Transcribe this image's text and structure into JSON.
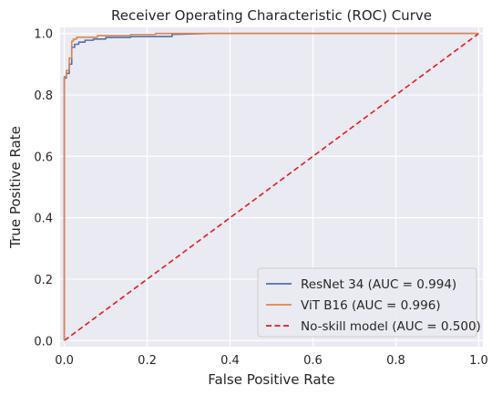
{
  "chart_data": {
    "type": "line",
    "title": "Receiver Operating Characteristic (ROC) Curve",
    "xlabel": "False Positive Rate",
    "ylabel": "True Positive Rate",
    "xlim": [
      -0.01,
      1.01
    ],
    "ylim": [
      -0.02,
      1.02
    ],
    "xticks": [
      "0.0",
      "0.2",
      "0.4",
      "0.6",
      "0.8",
      "1.0"
    ],
    "yticks": [
      "0.0",
      "0.2",
      "0.4",
      "0.6",
      "0.8",
      "1.0"
    ],
    "grid": true,
    "background": "#eaeaf2",
    "legend_position": "lower-right",
    "series": [
      {
        "name": "ResNet 34 (AUC = 0.994)",
        "color": "#4c72b0",
        "style": "solid",
        "x": [
          0,
          0,
          0.005,
          0.005,
          0.012,
          0.012,
          0.018,
          0.018,
          0.025,
          0.025,
          0.035,
          0.035,
          0.05,
          0.05,
          0.07,
          0.07,
          0.1,
          0.1,
          0.16,
          0.16,
          0.26,
          0.26,
          0.35,
          1.0
        ],
        "y": [
          0,
          0.855,
          0.855,
          0.87,
          0.87,
          0.9,
          0.9,
          0.955,
          0.955,
          0.965,
          0.965,
          0.972,
          0.972,
          0.978,
          0.978,
          0.982,
          0.982,
          0.987,
          0.987,
          0.99,
          0.99,
          0.997,
          1.0,
          1.0
        ]
      },
      {
        "name": "ViT B16 (AUC = 0.996)",
        "color": "#dd8452",
        "style": "solid",
        "x": [
          0,
          0,
          0.005,
          0.005,
          0.012,
          0.012,
          0.018,
          0.018,
          0.022,
          0.022,
          0.03,
          0.03,
          0.08,
          0.08,
          0.16,
          0.16,
          0.22,
          0.22,
          1.0
        ],
        "y": [
          0,
          0.86,
          0.86,
          0.88,
          0.88,
          0.92,
          0.92,
          0.975,
          0.975,
          0.982,
          0.982,
          0.988,
          0.988,
          0.993,
          0.993,
          0.997,
          0.997,
          1.0,
          1.0
        ]
      },
      {
        "name": "No-skill model (AUC = 0.500)",
        "color": "#e8191f",
        "style": "dashed",
        "x": [
          0,
          1
        ],
        "y": [
          0,
          1
        ]
      }
    ]
  }
}
